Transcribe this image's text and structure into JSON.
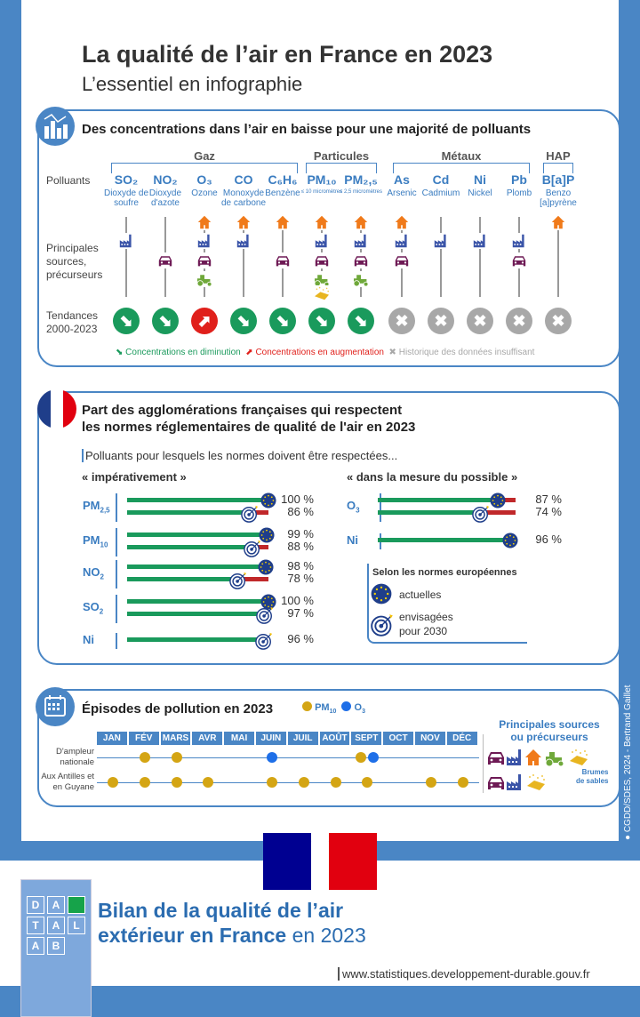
{
  "header": {
    "title": "La qualité de l’air en France en 2023",
    "subtitle": "L’essentiel en infographie"
  },
  "credit": "CGDD/SDES, 2024 - Bertrand Gaillet",
  "colors": {
    "frame": "#4a86c5",
    "blue_text": "#3a7cc0",
    "decrease": "#1a9a5c",
    "increase": "#e0201b",
    "insufficient": "#a8a8a8",
    "pm10": "#d4a514",
    "o3": "#1e6fe8",
    "bar_ok": "#1a9a5c",
    "bar_gap": "#c0282a"
  },
  "section1": {
    "title": "Des concentrations dans l’air en baisse pour une majorité de polluants",
    "row_labels": {
      "pollutants": "Polluants",
      "sources": "Principales sources, précurseurs",
      "trends": "Tendances 2000-2023"
    },
    "groups": [
      {
        "label": "Gaz"
      },
      {
        "label": "Particules"
      },
      {
        "label": "Métaux"
      },
      {
        "label": "HAP"
      }
    ],
    "pollutants": [
      {
        "code": "SO₂",
        "name": "Dioxyde de soufre",
        "sources": [
          "factory"
        ],
        "trend": "decrease"
      },
      {
        "code": "NO₂",
        "name": "Dioxyde d'azote",
        "sources": [
          "car"
        ],
        "trend": "decrease"
      },
      {
        "code": "O₃",
        "name": "Ozone",
        "sources": [
          "house",
          "factory",
          "car",
          "tractor"
        ],
        "trend": "increase"
      },
      {
        "code": "CO",
        "name": "Monoxyde de carbone",
        "sources": [
          "house",
          "factory"
        ],
        "trend": "decrease"
      },
      {
        "code": "C₆H₆",
        "name": "Benzène",
        "sources": [
          "house",
          "car"
        ],
        "trend": "decrease"
      },
      {
        "code": "PM₁₀",
        "name": "≤ 10 micromètres",
        "sources": [
          "house",
          "factory",
          "car",
          "tractor",
          "sand"
        ],
        "trend": "decrease"
      },
      {
        "code": "PM₂,₅",
        "name": "≤ 2,5 micromètres",
        "sources": [
          "house",
          "factory",
          "car",
          "tractor"
        ],
        "trend": "decrease"
      },
      {
        "code": "As",
        "name": "Arsenic",
        "sources": [
          "house",
          "factory",
          "car"
        ],
        "trend": "insufficient"
      },
      {
        "code": "Cd",
        "name": "Cadmium",
        "sources": [
          "factory"
        ],
        "trend": "insufficient"
      },
      {
        "code": "Ni",
        "name": "Nickel",
        "sources": [
          "factory"
        ],
        "trend": "insufficient"
      },
      {
        "code": "Pb",
        "name": "Plomb",
        "sources": [
          "factory",
          "car"
        ],
        "trend": "insufficient"
      },
      {
        "code": "B[a]P",
        "name": "Benzo [a]pyrène",
        "sources": [
          "house"
        ],
        "trend": "insufficient"
      }
    ],
    "legend": {
      "decrease": "Concentrations en diminution",
      "increase": "Concentrations en augmentation",
      "insufficient": "Historique des données insuffisant"
    }
  },
  "section2": {
    "title_line1": "Part des agglomérations françaises qui respectent",
    "title_line2": "les normes réglementaires de qualité de l'air en 2023",
    "intro": "Polluants pour lesquels les normes doivent être respectées...",
    "left_heading": "« impérativement »",
    "right_heading": "« dans la mesure du possible »",
    "left": [
      {
        "label": "PM",
        "sub": "2,5",
        "bars": [
          {
            "norm": "current",
            "value": 100,
            "pct": "100 %",
            "gap": false
          },
          {
            "norm": "2030",
            "value": 86,
            "pct": "86 %",
            "gap": true
          }
        ]
      },
      {
        "label": "PM",
        "sub": "10",
        "bars": [
          {
            "norm": "current",
            "value": 99,
            "pct": "99 %",
            "gap": false
          },
          {
            "norm": "2030",
            "value": 88,
            "pct": "88 %",
            "gap": true
          }
        ]
      },
      {
        "label": "NO",
        "sub": "2",
        "bars": [
          {
            "norm": "current",
            "value": 98,
            "pct": "98 %",
            "gap": false
          },
          {
            "norm": "2030",
            "value": 78,
            "pct": "78 %",
            "gap": true
          }
        ]
      },
      {
        "label": "SO",
        "sub": "2",
        "bars": [
          {
            "norm": "current",
            "value": 100,
            "pct": "100 %",
            "gap": false
          },
          {
            "norm": "2030",
            "value": 97,
            "pct": "97 %",
            "gap": false
          }
        ]
      },
      {
        "label": "Ni",
        "sub": "",
        "bars": [
          {
            "norm": "2030",
            "value": 96,
            "pct": "96 %",
            "gap": false
          }
        ]
      }
    ],
    "right": [
      {
        "label": "O",
        "sub": "3",
        "bars": [
          {
            "norm": "current",
            "value": 87,
            "pct": "87 %",
            "gap": true
          },
          {
            "norm": "2030",
            "value": 74,
            "pct": "74 %",
            "gap": true
          }
        ]
      },
      {
        "label": "Ni",
        "sub": "",
        "bars": [
          {
            "norm": "current",
            "value": 96,
            "pct": "96 %",
            "gap": false
          }
        ]
      }
    ],
    "legend": {
      "title": "Selon les normes européennes",
      "current": "actuelles",
      "future_line1": "envisagées",
      "future_line2": "pour 2030"
    }
  },
  "section3": {
    "title": "Épisodes de pollution en 2023",
    "legend": {
      "pm10": "PM",
      "pm10_sub": "10",
      "o3": "O",
      "o3_sub": "3"
    },
    "months": [
      "JAN",
      "FÉV",
      "MARS",
      "AVR",
      "MAI",
      "JUIN",
      "JUIL",
      "AOÛT",
      "SEPT",
      "OCT",
      "NOV",
      "DÉC"
    ],
    "rows": [
      {
        "label": "D'ampleur nationale",
        "episodes": [
          {
            "month": "FÉV",
            "pollutant": "pm10"
          },
          {
            "month": "MARS",
            "pollutant": "pm10"
          },
          {
            "month": "JUIN",
            "pollutant": "o3"
          },
          {
            "month": "SEPT",
            "pollutant": "pm10"
          },
          {
            "month": "SEPT",
            "pollutant": "o3"
          }
        ],
        "sources": [
          "car",
          "factory",
          "house",
          "tractor",
          "sand"
        ]
      },
      {
        "label": "Aux Antilles et en Guyane",
        "episodes": [
          {
            "month": "JAN",
            "pollutant": "pm10"
          },
          {
            "month": "FÉV",
            "pollutant": "pm10"
          },
          {
            "month": "MARS",
            "pollutant": "pm10"
          },
          {
            "month": "AVR",
            "pollutant": "pm10"
          },
          {
            "month": "JUIN",
            "pollutant": "pm10"
          },
          {
            "month": "JUIL",
            "pollutant": "pm10"
          },
          {
            "month": "AOÛT",
            "pollutant": "pm10"
          },
          {
            "month": "SEPT",
            "pollutant": "pm10"
          },
          {
            "month": "NOV",
            "pollutant": "pm10"
          },
          {
            "month": "DÉC",
            "pollutant": "pm10"
          }
        ],
        "sources": [
          "car",
          "factory",
          "sand"
        ]
      }
    ],
    "sources_title_line1": "Principales sources",
    "sources_title_line2": "ou précurseurs",
    "sand_label_line1": "Brumes",
    "sand_label_line2": "de sables"
  },
  "footer": {
    "report_title_line1": "Bilan de la qualité de l’air",
    "report_title_bold2": "extérieur en France",
    "report_title_year": "en 2023",
    "url": "www.statistiques.developpement-durable.gouv.fr",
    "cover_letters": [
      "D",
      "A",
      "",
      "T",
      "A",
      "L",
      "A",
      "B"
    ]
  }
}
